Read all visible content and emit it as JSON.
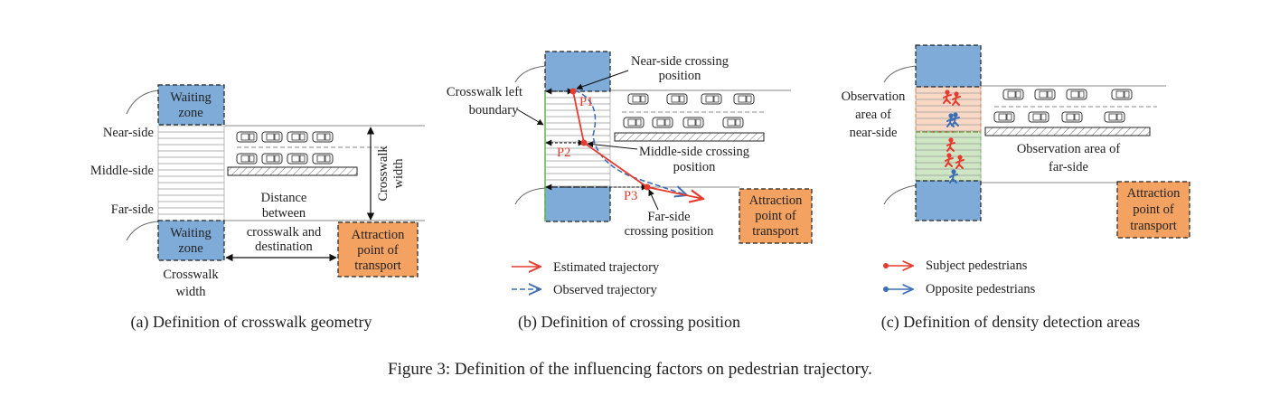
{
  "colors": {
    "waiting_zone": "#7eabd8",
    "attraction": "#f4a261",
    "estimated": "#e63b2e",
    "observed": "#3d6fb6",
    "near_area": "#f9d9c6",
    "far_area": "#cfe6c4",
    "boundary": "#6bb75a"
  },
  "panel_a": {
    "waiting_zone_top": [
      "Waiting",
      "zone"
    ],
    "waiting_zone_bottom": [
      "Waiting",
      "zone"
    ],
    "near_side": "Near-side",
    "middle_side": "Middle-side",
    "far_side": "Far-side",
    "crosswalk_width_vertical": [
      "Crosswalk",
      "width"
    ],
    "distance": [
      "Distance",
      "between",
      "crosswalk and",
      "destination"
    ],
    "crosswalk_width_bottom": [
      "Crosswalk",
      "width"
    ],
    "attraction": [
      "Attraction",
      "point of",
      "transport"
    ],
    "caption": "(a)  Definition of crosswalk geometry"
  },
  "panel_b": {
    "near_side_position": [
      "Near-side crossing",
      "position"
    ],
    "left_boundary": [
      "Crosswalk left",
      "boundary"
    ],
    "middle_side_position": [
      "Middle-side crossing",
      "position"
    ],
    "far_side_position": [
      "Far-side",
      "crossing position"
    ],
    "p1": "P1",
    "p2": "P2",
    "p3": "P3",
    "attraction": [
      "Attraction",
      "point of",
      "transport"
    ],
    "legend_estimated": "Estimated trajectory",
    "legend_observed": "Observed trajectory",
    "caption": "(b)  Definition of crossing position"
  },
  "panel_c": {
    "observation_near": [
      "Observation",
      "area of",
      "near-side"
    ],
    "observation_far": [
      "Observation area of",
      "far-side"
    ],
    "attraction": [
      "Attraction",
      "point of",
      "transport"
    ],
    "legend_subject": "Subject pedestrians",
    "legend_opposite": "Opposite pedestrians",
    "caption": "(c)  Definition of density detection areas"
  },
  "figure_caption": "Figure 3: Definition of the influencing factors on pedestrian trajectory."
}
